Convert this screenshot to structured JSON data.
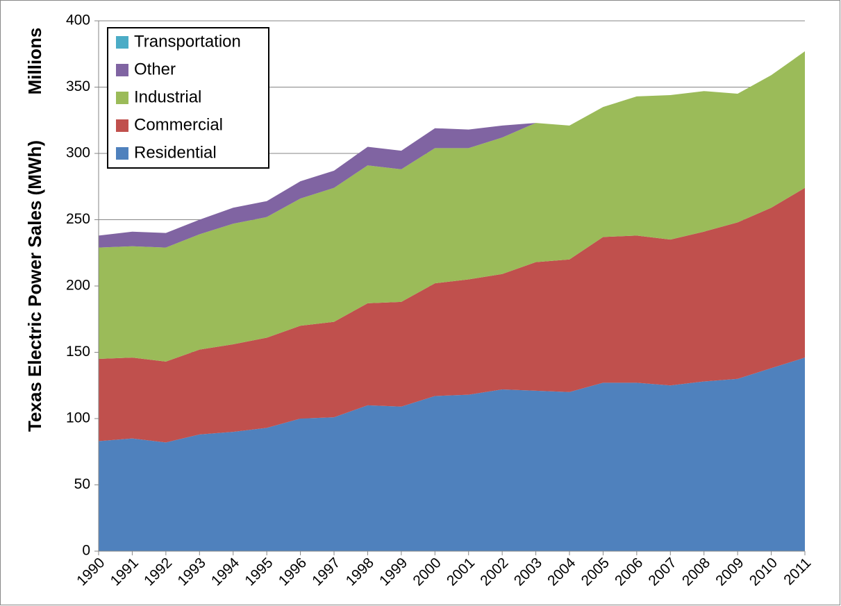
{
  "chart_data": {
    "type": "stacked_area",
    "y_label": "Texas Electric Power Sales (MWh)",
    "y_unit_label": "Millions",
    "categories": [
      "1990",
      "1991",
      "1992",
      "1993",
      "1994",
      "1995",
      "1996",
      "1997",
      "1998",
      "1999",
      "2000",
      "2001",
      "2002",
      "2003",
      "2004",
      "2005",
      "2006",
      "2007",
      "2008",
      "2009",
      "2010",
      "2011"
    ],
    "series": [
      {
        "name": "Residential",
        "color": "#4f81bd",
        "values": [
          83,
          85,
          82,
          88,
          90,
          93,
          100,
          101,
          110,
          109,
          117,
          118,
          122,
          121,
          120,
          127,
          127,
          125,
          128,
          130,
          138,
          146
        ]
      },
      {
        "name": "Commercial",
        "color": "#c0504d",
        "values": [
          62,
          61,
          61,
          64,
          66,
          68,
          70,
          72,
          77,
          79,
          85,
          87,
          87,
          97,
          100,
          110,
          111,
          110,
          113,
          118,
          121,
          128
        ]
      },
      {
        "name": "Industrial",
        "color": "#9bbb59",
        "values": [
          84,
          84,
          86,
          87,
          91,
          91,
          96,
          101,
          104,
          100,
          102,
          99,
          103,
          105,
          101,
          98,
          105,
          109,
          106,
          97,
          100,
          103
        ]
      },
      {
        "name": "Other",
        "color": "#8064a2",
        "values": [
          9,
          11,
          11,
          11,
          12,
          12,
          13,
          13,
          14,
          14,
          15,
          14,
          9,
          0,
          0,
          0,
          0,
          0,
          0,
          0,
          0,
          0
        ]
      },
      {
        "name": "Transportation",
        "color": "#4bacc6",
        "values": [
          0,
          0,
          0,
          0,
          0,
          0,
          0,
          0,
          0,
          0,
          0,
          0,
          0,
          0,
          0,
          0,
          0,
          0,
          0,
          0,
          0,
          0
        ]
      }
    ],
    "ylim": [
      0,
      400
    ],
    "yticks": [
      0,
      50,
      100,
      150,
      200,
      250,
      300,
      350,
      400
    ],
    "grid": true,
    "legend": "upper left"
  }
}
